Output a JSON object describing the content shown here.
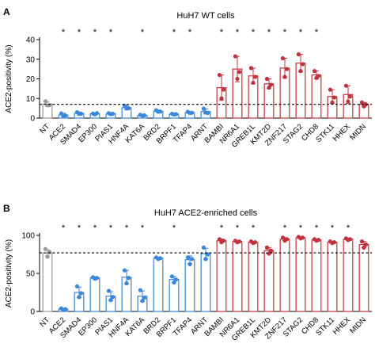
{
  "colors": {
    "control": "#9a9a9a",
    "down_hits": "#3a86d8",
    "up_hits": "#c0333d",
    "axis": "#000000",
    "threshold": "#000000"
  },
  "chart_data": [
    {
      "panel": "A",
      "type": "bar",
      "title": "HuH7 WT cells",
      "ylabel": "ACE2-positivity (%)",
      "ylim": [
        0,
        40
      ],
      "yticks": [
        0,
        10,
        20,
        30,
        40
      ],
      "threshold": 7,
      "categories": [
        "NT",
        "ACE2",
        "SMAD4",
        "EP300",
        "PIAS1",
        "HNF4A",
        "KAT6A",
        "BRD2",
        "BRPF1",
        "TFAP4",
        "ARNT",
        "BAMBI",
        "NR6A1",
        "GREB1L",
        "KMT2D",
        "ZNF217",
        "STAG2",
        "CHD8",
        "STK11",
        "HHEX",
        "MIDN"
      ],
      "groups": [
        "control",
        "down",
        "down",
        "down",
        "down",
        "down",
        "down",
        "down",
        "down",
        "down",
        "down",
        "up",
        "up",
        "up",
        "up",
        "up",
        "up",
        "up",
        "up",
        "up",
        "up"
      ],
      "values": [
        7.2,
        1.6,
        2.4,
        2.2,
        2.2,
        5.3,
        1.4,
        3.5,
        2.0,
        2.8,
        3.4,
        15.5,
        25.0,
        21.5,
        17.5,
        25.5,
        28.0,
        22.0,
        11.0,
        12.0,
        7.0
      ],
      "errors": [
        1.2,
        0.9,
        0.7,
        0.4,
        0.5,
        1.0,
        0.4,
        0.6,
        0.3,
        0.5,
        1.3,
        6.5,
        6.5,
        4.0,
        2.5,
        5.0,
        4.5,
        2.0,
        3.5,
        4.5,
        1.0
      ],
      "replicates": [
        [
          8.6,
          6.5,
          6.6
        ],
        [
          2.4,
          1.0,
          1.3
        ],
        [
          3.0,
          2.1,
          2.2
        ],
        [
          2.3,
          1.9,
          2.5
        ],
        [
          2.5,
          2.0,
          2.2
        ],
        [
          6.3,
          4.9,
          5.0
        ],
        [
          1.7,
          1.2,
          1.4
        ],
        [
          4.0,
          3.2,
          3.3
        ],
        [
          2.2,
          1.8,
          2.0
        ],
        [
          3.2,
          2.6,
          2.7
        ],
        [
          4.8,
          2.9,
          2.6
        ],
        [
          22.0,
          10.0,
          14.5
        ],
        [
          31.5,
          20.0,
          23.5
        ],
        [
          25.5,
          18.0,
          21.0
        ],
        [
          20.0,
          15.5,
          17.0
        ],
        [
          30.5,
          21.0,
          25.0
        ],
        [
          32.5,
          24.0,
          27.5
        ],
        [
          24.0,
          20.5,
          21.5
        ],
        [
          14.5,
          8.0,
          10.5
        ],
        [
          16.5,
          8.5,
          11.0
        ],
        [
          8.0,
          6.0,
          7.0
        ]
      ],
      "significance": [
        "",
        "*",
        "*",
        "*",
        "*",
        "",
        "*",
        "",
        "*",
        "*",
        "",
        "*",
        "*",
        "*",
        "*",
        "*",
        "*",
        "*",
        "",
        "",
        ""
      ]
    },
    {
      "panel": "B",
      "type": "bar",
      "title": "HuH7 ACE2-enriched cells",
      "ylabel": "ACE2-positivity (%)",
      "ylim": [
        0,
        100
      ],
      "yticks": [
        0,
        50,
        100
      ],
      "threshold": 77,
      "categories": [
        "NT",
        "ACE2",
        "SMAD4",
        "EP300",
        "PIAS1",
        "HNF4A",
        "KAT6A",
        "BRD2",
        "BRPF1",
        "TFAP4",
        "ARNT",
        "BAMBI",
        "NR6A1",
        "GREB1L",
        "KMT2D",
        "ZNF217",
        "STAG2",
        "CHD8",
        "STK11",
        "HHEX",
        "MIDN"
      ],
      "groups": [
        "control",
        "down",
        "down",
        "down",
        "down",
        "down",
        "down",
        "down",
        "down",
        "down",
        "down",
        "up",
        "up",
        "up",
        "up",
        "up",
        "up",
        "up",
        "up",
        "up",
        "up"
      ],
      "values": [
        77,
        3,
        25,
        44,
        20,
        45,
        20,
        70,
        42,
        68,
        76,
        93,
        92,
        91,
        80,
        95,
        97,
        94,
        91,
        95,
        88
      ],
      "errors": [
        4,
        1,
        7,
        1.5,
        6,
        9,
        7,
        1,
        4,
        5,
        7,
        2,
        1,
        1,
        4,
        2,
        1,
        1,
        1,
        1,
        4
      ],
      "replicates": [
        [
          82,
          72,
          78
        ],
        [
          4,
          2,
          3
        ],
        [
          33,
          19,
          24
        ],
        [
          45,
          43,
          44
        ],
        [
          27,
          15,
          19
        ],
        [
          54,
          37,
          44
        ],
        [
          28,
          14,
          18
        ],
        [
          71,
          69,
          70
        ],
        [
          46,
          38,
          42
        ],
        [
          71,
          62,
          69
        ],
        [
          84,
          69,
          75
        ],
        [
          95,
          91,
          93
        ],
        [
          93,
          91,
          92
        ],
        [
          92,
          90,
          91
        ],
        [
          84,
          76,
          80
        ],
        [
          97,
          93,
          95
        ],
        [
          98,
          96,
          97
        ],
        [
          95,
          93,
          94
        ],
        [
          92,
          90,
          91
        ],
        [
          96,
          94,
          95
        ],
        [
          92,
          84,
          88
        ]
      ],
      "significance": [
        "",
        "*",
        "*",
        "*",
        "*",
        "*",
        "*",
        "",
        "*",
        "",
        "",
        "*",
        "*",
        "*",
        "",
        "*",
        "*",
        "*",
        "*",
        "*",
        ""
      ]
    }
  ]
}
